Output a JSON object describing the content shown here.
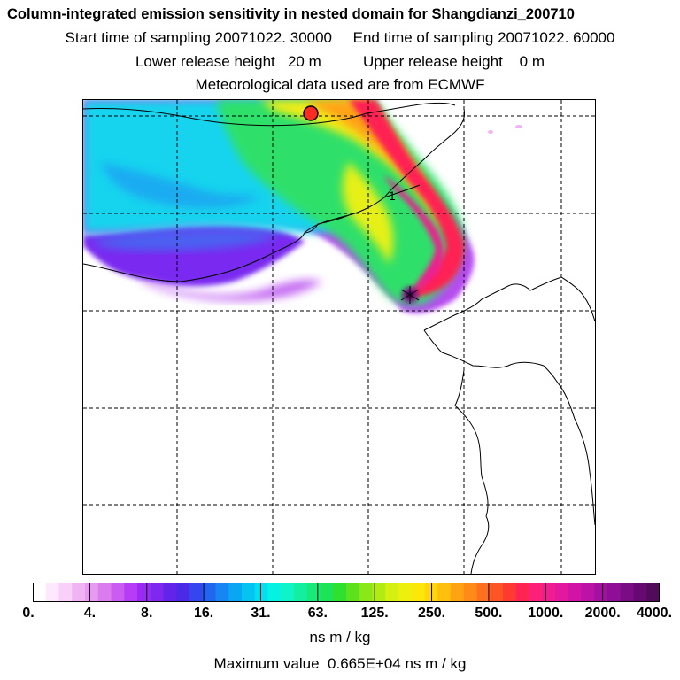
{
  "header": {
    "title": "Column-integrated emission sensitivity in nested domain for Shangdianzi_200710",
    "sampling": "Start time of sampling 20071022. 30000     End time of sampling 20071022. 60000",
    "release": "Lower release height   20 m          Upper release height    0 m",
    "meteo": "Meteorological data used are from ECMWF"
  },
  "map": {
    "receptor_marker": "1"
  },
  "colorbar": {
    "tick_labels": [
      "0.",
      "4.",
      "8.",
      "16.",
      "31.",
      "63.",
      "125.",
      "250.",
      "500.",
      "1000.",
      "2000.",
      "4000."
    ],
    "colors": [
      "#ffffff",
      "#fde8fd",
      "#f8d1f8",
      "#f0b4f4",
      "#e79bf0",
      "#da7cee",
      "#cb5cf2",
      "#b63cf5",
      "#9b2af5",
      "#7f28f0",
      "#6124e8",
      "#4a2ae6",
      "#3646ee",
      "#2266f0",
      "#1586f2",
      "#0ba6f3",
      "#05c4f2",
      "#00e0ee",
      "#05f2e2",
      "#0ef4c6",
      "#12efa0",
      "#16ea78",
      "#1de454",
      "#2ee030",
      "#5ce21c",
      "#8ae818",
      "#b0ec14",
      "#d4f010",
      "#ecf00c",
      "#fbe80a",
      "#ffd60a",
      "#ffbf0c",
      "#ffa312",
      "#ff8a18",
      "#ff701e",
      "#ff5524",
      "#ff3a30",
      "#ff2452",
      "#fc2076",
      "#f01c90",
      "#e2189e",
      "#d014a6",
      "#bc12a6",
      "#a610a2",
      "#8e0e96",
      "#7a0c86",
      "#660a72",
      "#520a5a"
    ],
    "units": "ns m / kg",
    "max_value": "Maximum value  0.665E+04 ns m / kg"
  }
}
